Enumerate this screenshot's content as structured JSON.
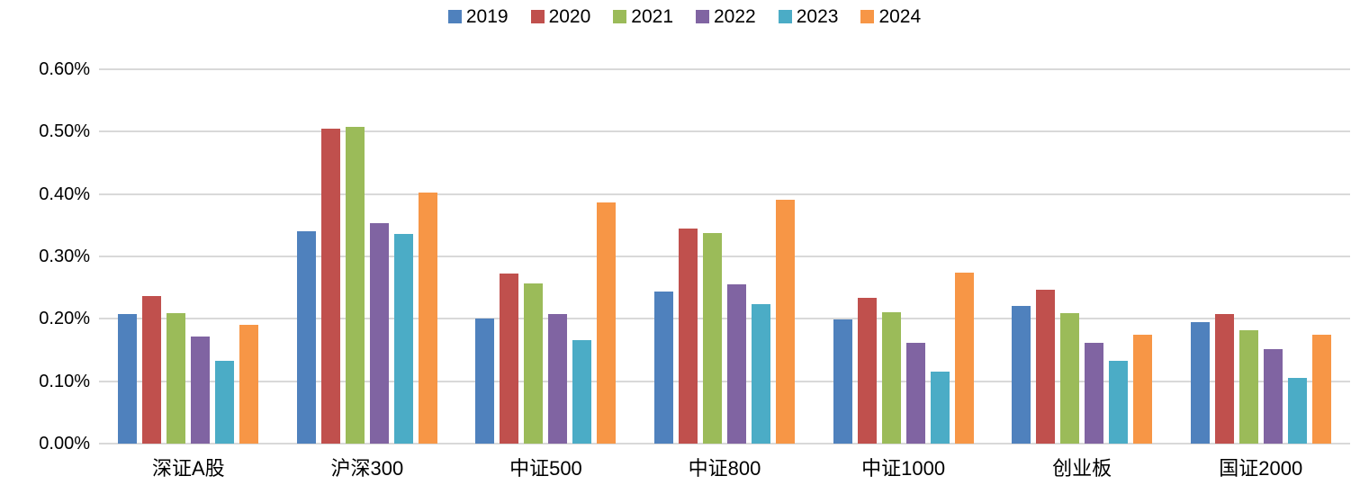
{
  "chart_data": {
    "type": "bar",
    "title": "",
    "xlabel": "",
    "ylabel": "",
    "categories": [
      "深证A股",
      "沪深300",
      "中证500",
      "中证800",
      "中证1000",
      "创业板",
      "国证2000"
    ],
    "series": [
      {
        "name": "2019",
        "color": "#4F81BD",
        "values": [
          0.208,
          0.34,
          0.2,
          0.244,
          0.199,
          0.22,
          0.195
        ]
      },
      {
        "name": "2020",
        "color": "#C0504D",
        "values": [
          0.236,
          0.505,
          0.273,
          0.345,
          0.233,
          0.247,
          0.207
        ]
      },
      {
        "name": "2021",
        "color": "#9BBB59",
        "values": [
          0.209,
          0.507,
          0.257,
          0.338,
          0.211,
          0.209,
          0.182
        ]
      },
      {
        "name": "2022",
        "color": "#8064A2",
        "values": [
          0.171,
          0.354,
          0.207,
          0.256,
          0.162,
          0.161,
          0.151
        ]
      },
      {
        "name": "2023",
        "color": "#4BACC6",
        "values": [
          0.133,
          0.336,
          0.166,
          0.224,
          0.116,
          0.132,
          0.106
        ]
      },
      {
        "name": "2024",
        "color": "#F79646",
        "values": [
          0.19,
          0.402,
          0.386,
          0.391,
          0.274,
          0.174,
          0.175
        ]
      }
    ],
    "ylim": [
      0,
      0.6
    ],
    "y_tick_step": 0.1,
    "y_ticks": [
      "0.60%",
      "0.50%",
      "0.40%",
      "0.30%",
      "0.20%",
      "0.10%",
      "0.00%"
    ],
    "unit": "percent",
    "grid": true,
    "grid_color": "#D9D9D9",
    "text_color": "#000000",
    "background": "#FFFFFF",
    "legend_position": "top"
  }
}
